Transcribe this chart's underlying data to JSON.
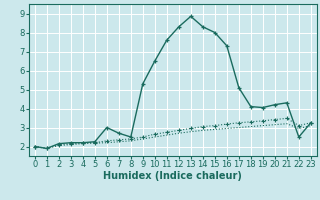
{
  "title": "",
  "xlabel": "Humidex (Indice chaleur)",
  "ylabel": "",
  "background_color": "#cce8ec",
  "grid_color": "#ffffff",
  "line_color": "#1a6b5e",
  "xlim": [
    -0.5,
    23.5
  ],
  "ylim": [
    1.5,
    9.5
  ],
  "xticks": [
    0,
    1,
    2,
    3,
    4,
    5,
    6,
    7,
    8,
    9,
    10,
    11,
    12,
    13,
    14,
    15,
    16,
    17,
    18,
    19,
    20,
    21,
    22,
    23
  ],
  "yticks": [
    2,
    3,
    4,
    5,
    6,
    7,
    8,
    9
  ],
  "series1_x": [
    0,
    1,
    2,
    3,
    4,
    5,
    6,
    7,
    8,
    9,
    10,
    11,
    12,
    13,
    14,
    15,
    16,
    17,
    18,
    19,
    20,
    21,
    22,
    23
  ],
  "series1_y": [
    2.0,
    1.9,
    2.15,
    2.2,
    2.2,
    2.25,
    3.0,
    2.7,
    2.5,
    5.3,
    6.5,
    7.6,
    8.3,
    8.85,
    8.3,
    8.0,
    7.3,
    5.1,
    4.1,
    4.05,
    4.2,
    4.3,
    2.5,
    3.25
  ],
  "series2_x": [
    0,
    1,
    2,
    3,
    4,
    5,
    6,
    7,
    8,
    9,
    10,
    11,
    12,
    13,
    14,
    15,
    16,
    17,
    18,
    19,
    20,
    21,
    22,
    23
  ],
  "series2_y": [
    2.0,
    1.9,
    2.1,
    2.15,
    2.2,
    2.2,
    2.3,
    2.35,
    2.4,
    2.5,
    2.65,
    2.75,
    2.85,
    2.95,
    3.05,
    3.1,
    3.18,
    3.25,
    3.3,
    3.35,
    3.42,
    3.48,
    3.1,
    3.25
  ],
  "series3_x": [
    0,
    1,
    2,
    3,
    4,
    5,
    6,
    7,
    8,
    9,
    10,
    11,
    12,
    13,
    14,
    15,
    16,
    17,
    18,
    19,
    20,
    21,
    22,
    23
  ],
  "series3_y": [
    2.0,
    1.9,
    2.05,
    2.1,
    2.15,
    2.18,
    2.2,
    2.25,
    2.3,
    2.4,
    2.5,
    2.6,
    2.7,
    2.78,
    2.85,
    2.9,
    2.95,
    3.0,
    3.05,
    3.1,
    3.15,
    3.2,
    2.95,
    3.1
  ],
  "tick_fontsize": 6.0,
  "xlabel_fontsize": 7.0
}
